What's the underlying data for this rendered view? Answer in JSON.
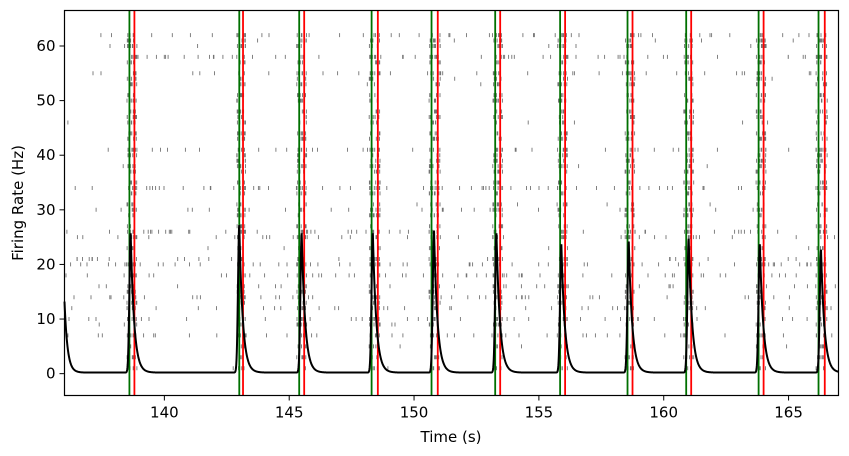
{
  "chart_data": {
    "type": "line",
    "xlabel": "Time (s)",
    "ylabel": "Firing Rate (Hz)",
    "xlim": [
      136,
      167
    ],
    "ylim": [
      -4,
      66.5
    ],
    "xticks": [
      140,
      145,
      150,
      155,
      160,
      165
    ],
    "yticks": [
      0,
      10,
      20,
      30,
      40,
      50,
      60
    ],
    "grid": false,
    "legend": "none",
    "colors": {
      "rate_line": "#000000",
      "onset_marker": "#007000",
      "offset_marker": "#ff0000",
      "raster": "#000000"
    },
    "burst_peaks": [
      {
        "time": 138.65,
        "peak": 25.5
      },
      {
        "time": 143.0,
        "peak": 27.0
      },
      {
        "time": 145.5,
        "peak": 25.5
      },
      {
        "time": 148.35,
        "peak": 25.5
      },
      {
        "time": 150.8,
        "peak": 26.0
      },
      {
        "time": 153.3,
        "peak": 25.5
      },
      {
        "time": 155.9,
        "peak": 23.5
      },
      {
        "time": 158.6,
        "peak": 24.0
      },
      {
        "time": 161.0,
        "peak": 24.5
      },
      {
        "time": 163.85,
        "peak": 23.5
      },
      {
        "time": 166.3,
        "peak": 22.5
      }
    ],
    "onset_times": [
      138.6,
      143.0,
      145.4,
      148.3,
      150.7,
      153.25,
      155.85,
      158.55,
      160.9,
      163.8,
      166.2
    ],
    "offset_times": [
      138.8,
      143.15,
      145.6,
      148.55,
      150.95,
      153.45,
      156.05,
      158.75,
      161.1,
      164.0,
      166.45
    ],
    "baseline_rate": 0.2,
    "initial_rate": 13.0,
    "raster_active_units": [
      1,
      3,
      5,
      7,
      9,
      10,
      12,
      13,
      14,
      15,
      16,
      18,
      20,
      21,
      23,
      25,
      26,
      27,
      29,
      30,
      31,
      33,
      34,
      35,
      37,
      38,
      39,
      40,
      41,
      43,
      44,
      46,
      47,
      48,
      50,
      51,
      53,
      54,
      55,
      57,
      58,
      60,
      61,
      62
    ],
    "raster_tonic_units": [
      7,
      10,
      12,
      14,
      16,
      18,
      20,
      21,
      25,
      26,
      30,
      34,
      41,
      55,
      58,
      62
    ]
  }
}
